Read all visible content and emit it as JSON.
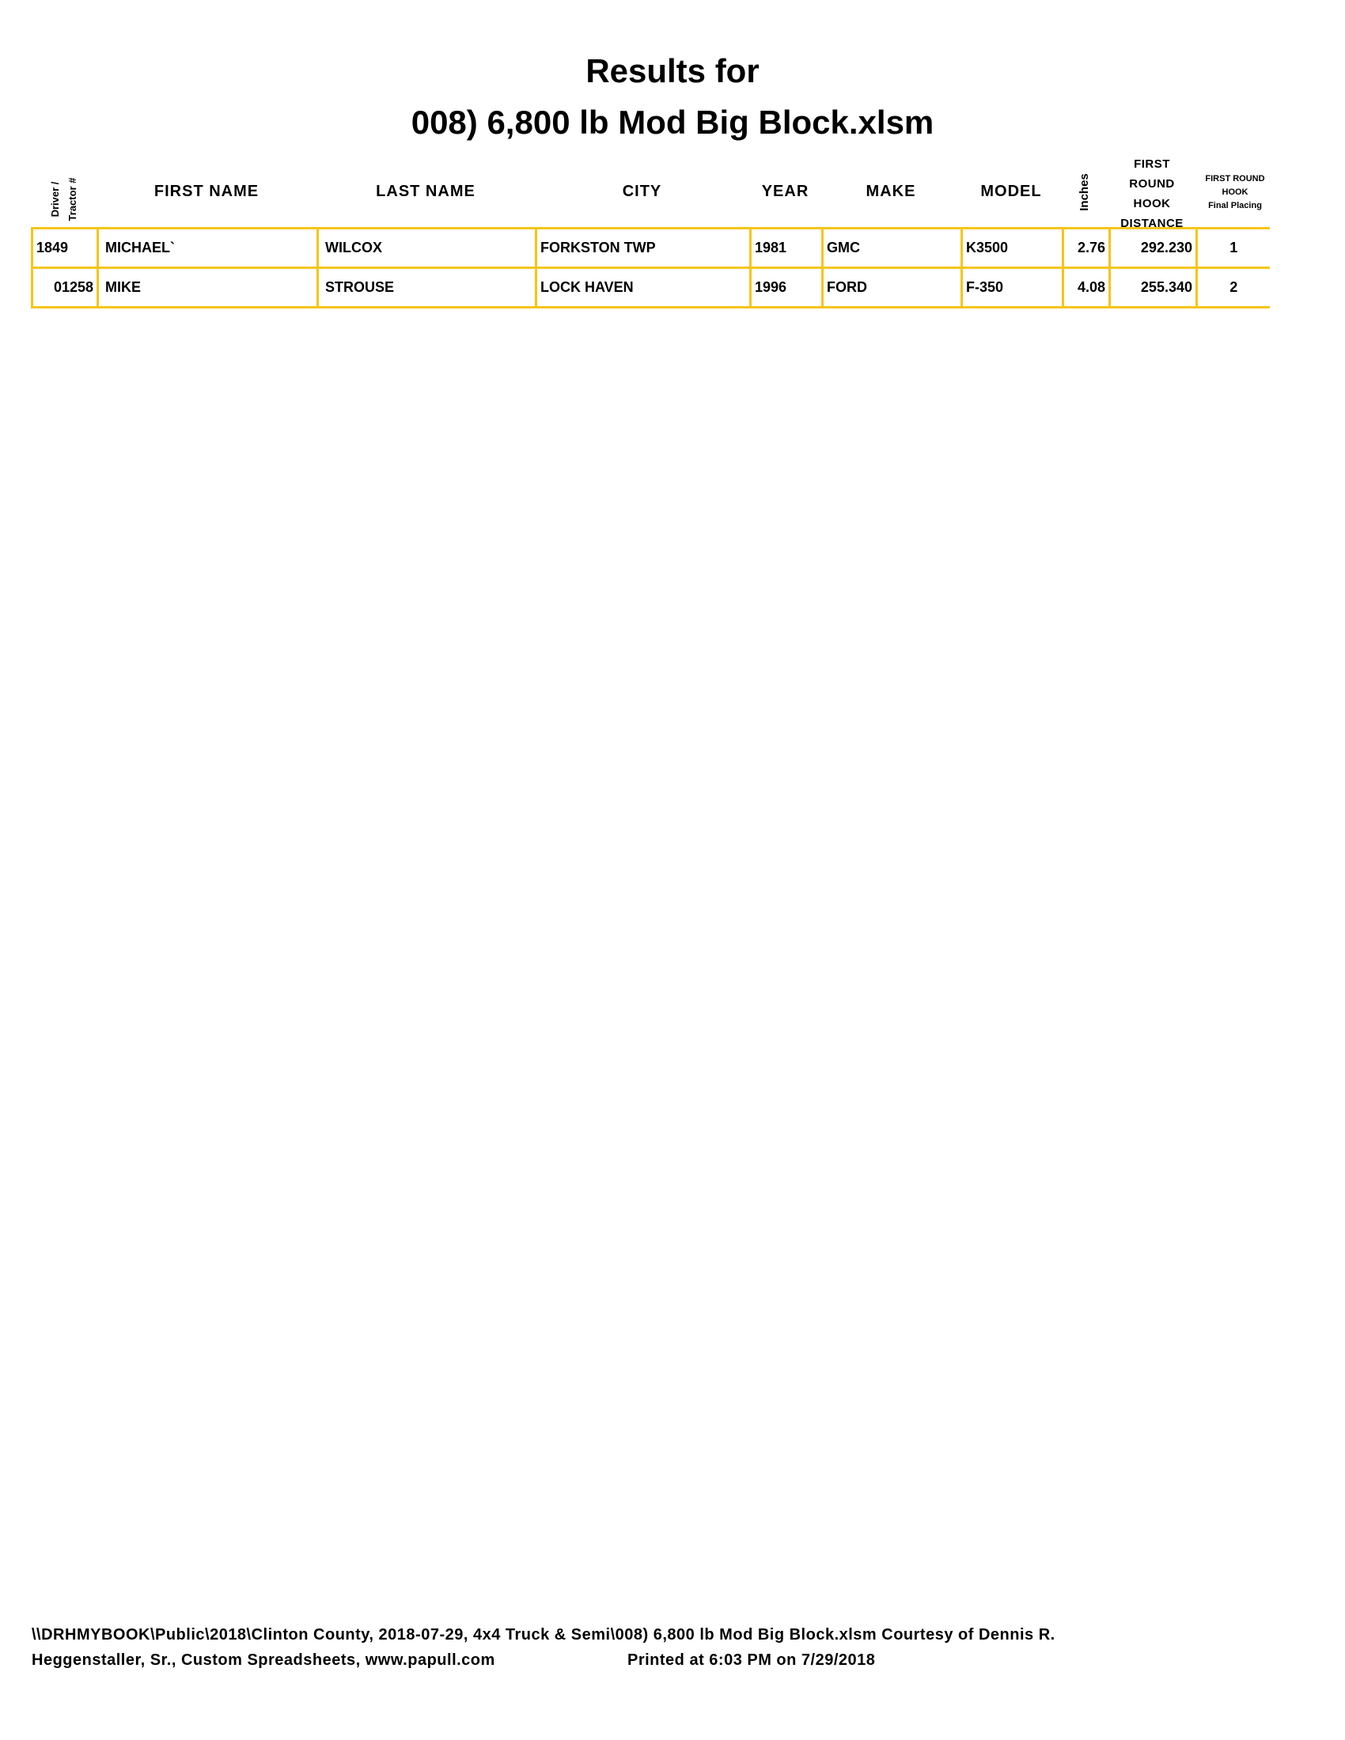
{
  "title": {
    "line1": "Results for",
    "line2": "008) 6,800 lb Mod Big Block.xlsm"
  },
  "columns": {
    "driver_line1": "Driver /",
    "driver_line2": "Tractor #",
    "first_name": "FIRST NAME",
    "last_name": "LAST NAME",
    "city": "CITY",
    "year": "YEAR",
    "make": "MAKE",
    "model": "MODEL",
    "inches": "Inches",
    "distance": [
      "FIRST",
      "ROUND",
      "HOOK",
      "DISTANCE"
    ],
    "placing": [
      "FIRST ROUND",
      "HOOK",
      "Final Placing"
    ]
  },
  "rows": [
    {
      "num": "1849",
      "first": "MICHAEL`",
      "last": "WILCOX",
      "city": "FORKSTON TWP",
      "year": "1981",
      "make": "GMC",
      "model": "K3500",
      "inches": "2.76",
      "distance": "292.230",
      "place": "1"
    },
    {
      "num": "01258",
      "first": "MIKE",
      "last": "STROUSE",
      "city": "LOCK HAVEN",
      "year": "1996",
      "make": "FORD",
      "model": "F-350",
      "inches": "4.08",
      "distance": "255.340",
      "place": "2"
    }
  ],
  "footer": {
    "line1": "\\\\DRHMYBOOK\\Public\\2018\\Clinton County, 2018-07-29, 4x4 Truck & Semi\\008) 6,800 lb Mod Big Block.xlsm  Courtesy of Dennis R.",
    "line2": "Heggenstaller, Sr., Custom Spreadsheets, www.papull.com",
    "printed": "Printed at 6:03 PM on 7/29/2018"
  },
  "colors": {
    "grid": "#f5c518"
  }
}
